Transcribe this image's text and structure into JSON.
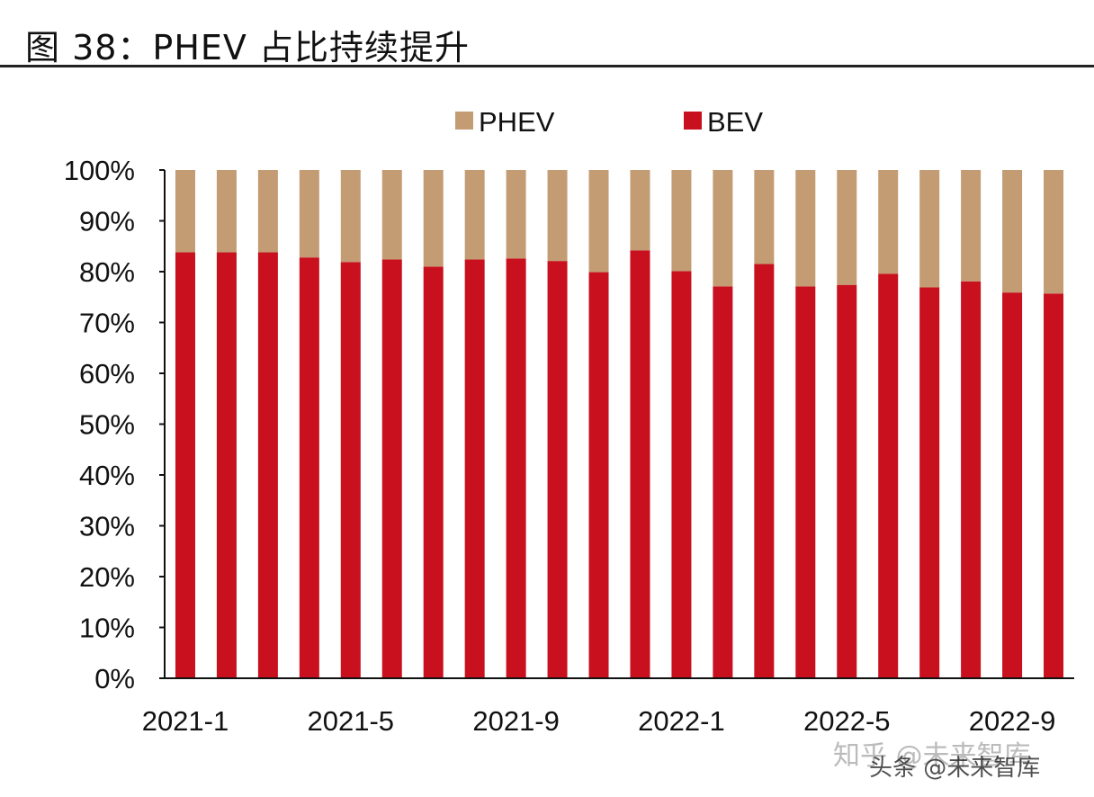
{
  "title": "图 38：PHEV 占比持续提升",
  "chart_data": {
    "type": "bar",
    "stacked": true,
    "categories": [
      "2021-1",
      "2021-2",
      "2021-3",
      "2021-4",
      "2021-5",
      "2021-6",
      "2021-7",
      "2021-8",
      "2021-9",
      "2021-10",
      "2021-11",
      "2021-12",
      "2022-1",
      "2022-2",
      "2022-3",
      "2022-4",
      "2022-5",
      "2022-6",
      "2022-7",
      "2022-8",
      "2022-9",
      "2022-10"
    ],
    "x_tick_labels": [
      "2021-1",
      "2021-5",
      "2021-9",
      "2022-1",
      "2022-5",
      "2022-9"
    ],
    "series": [
      {
        "name": "BEV",
        "color": "#C8101E",
        "values": [
          83.8,
          83.8,
          83.8,
          82.8,
          81.9,
          82.4,
          81.0,
          82.4,
          82.6,
          82.1,
          79.9,
          84.2,
          80.1,
          77.1,
          81.5,
          77.1,
          77.4,
          79.6,
          76.9,
          78.1,
          75.9,
          75.7
        ]
      },
      {
        "name": "PHEV",
        "color": "#C39C74",
        "values": [
          16.2,
          16.2,
          16.2,
          17.2,
          18.1,
          17.6,
          19.0,
          17.6,
          17.4,
          17.9,
          20.1,
          15.8,
          19.9,
          22.9,
          18.5,
          22.9,
          22.6,
          20.4,
          23.1,
          21.9,
          24.1,
          24.3
        ]
      }
    ],
    "legend_order": [
      "PHEV",
      "BEV"
    ],
    "ylim": [
      0,
      100
    ],
    "y_tick_labels": [
      "0%",
      "10%",
      "20%",
      "30%",
      "40%",
      "50%",
      "60%",
      "70%",
      "80%",
      "90%",
      "100%"
    ],
    "xlabel": "",
    "ylabel": "",
    "grid": false,
    "legend_position": "top"
  },
  "watermark": [
    "知乎 @未来智库",
    "头条 @未来智库"
  ]
}
